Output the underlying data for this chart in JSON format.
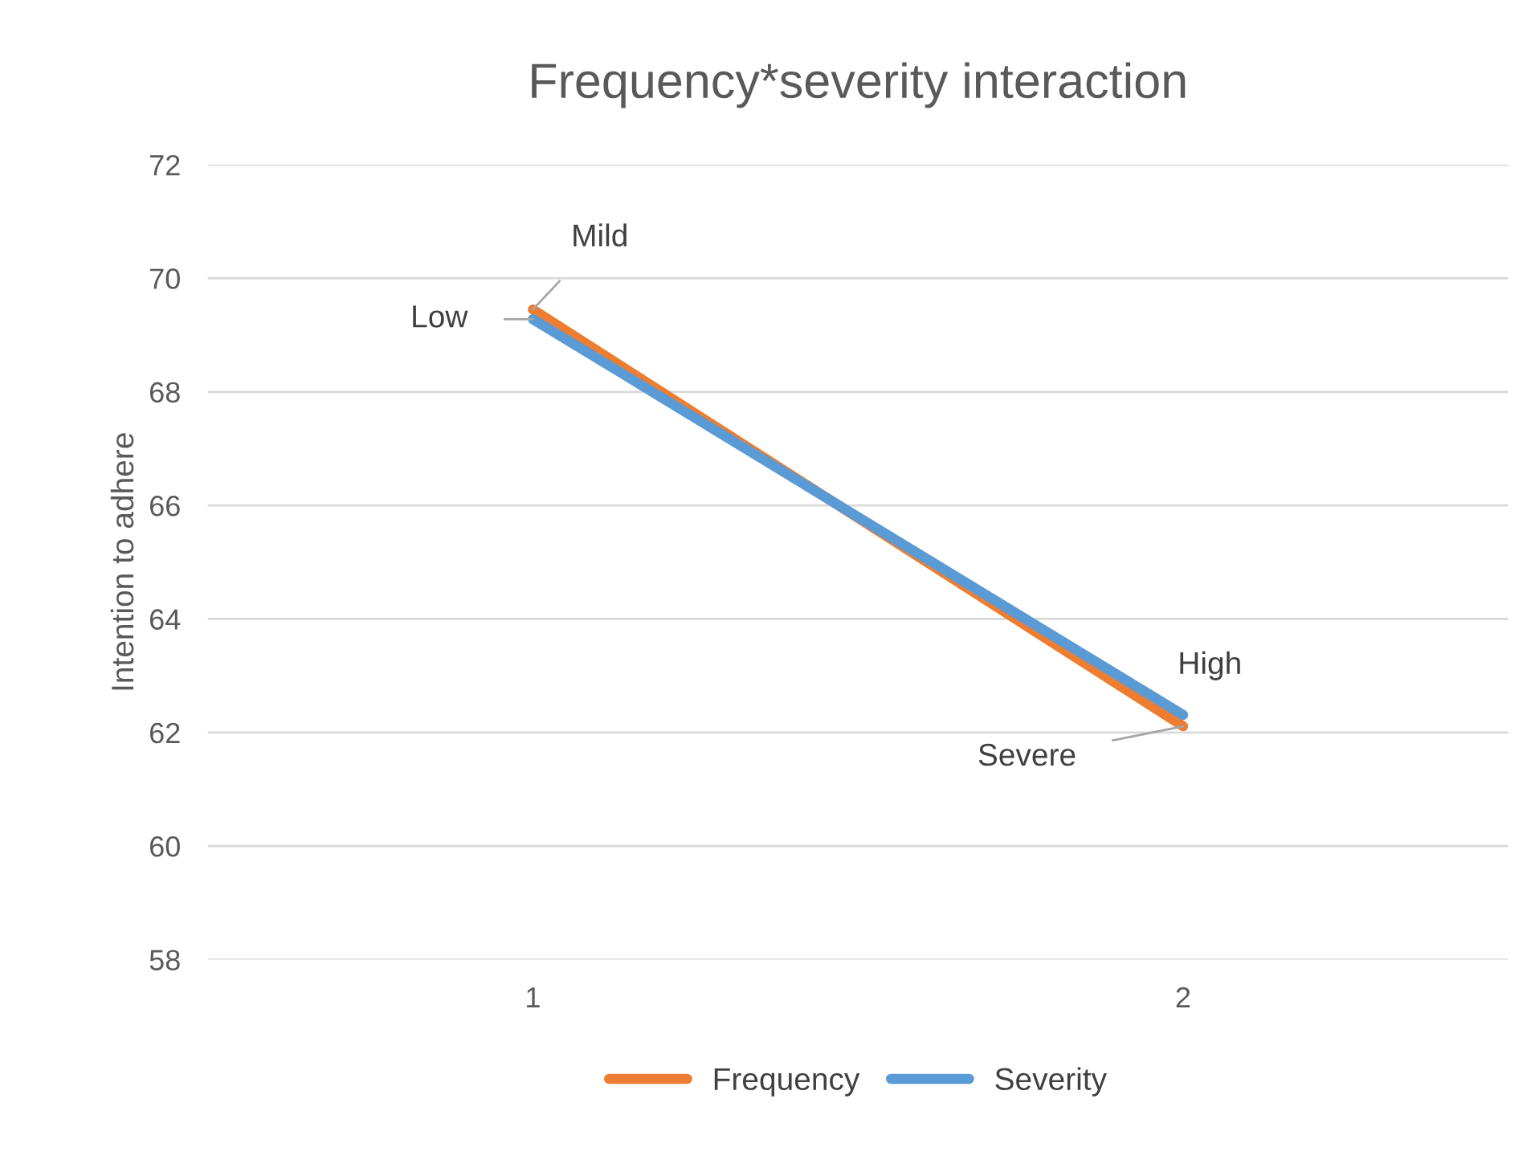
{
  "chart_data": {
    "type": "line",
    "title": "Frequency*severity interaction",
    "ylabel": "Intention to adhere",
    "categories": [
      "1",
      "2"
    ],
    "series": [
      {
        "name": "Frequency",
        "color": "#ed7d31",
        "values": [
          69.45,
          62.11
        ]
      },
      {
        "name": "Severity",
        "color": "#5b9bd5",
        "values": [
          69.28,
          62.31
        ]
      }
    ],
    "annotations": [
      {
        "text": "Mild",
        "x": "1",
        "y": 69.45
      },
      {
        "text": "Low",
        "x": "1",
        "y": 69.28
      },
      {
        "text": "High",
        "x": "2",
        "y": 62.31
      },
      {
        "text": "Severe",
        "x": "2",
        "y": 62.11
      }
    ],
    "ylim": [
      58,
      72
    ],
    "yticks": [
      58,
      60,
      62,
      64,
      66,
      68,
      70,
      72
    ],
    "grid": "y",
    "legend": "bottom",
    "marker": "none",
    "line_style": "solid"
  }
}
